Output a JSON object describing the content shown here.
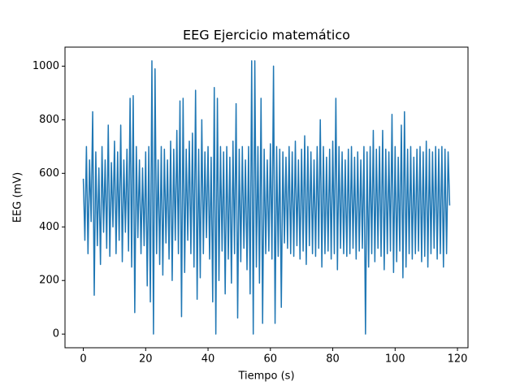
{
  "chart_data": {
    "type": "line",
    "title": "EEG Ejercicio matemático",
    "x_label": "Tiempo (s)",
    "y_label": "EEG (mV)",
    "xlim": [
      -5.875,
      123.375
    ],
    "ylim": [
      -51,
      1071
    ],
    "xticks": [
      0,
      20,
      40,
      60,
      80,
      100,
      120
    ],
    "yticks": [
      0,
      200,
      400,
      600,
      800,
      1000
    ],
    "series": [
      {
        "color": "#1f77b4",
        "x": [
          0,
          0.5,
          1,
          1.5,
          2,
          2.5,
          3,
          3.5,
          4,
          4.5,
          5,
          5.5,
          6,
          6.5,
          7,
          7.5,
          8,
          8.5,
          9,
          9.5,
          10,
          10.5,
          11,
          11.5,
          12,
          12.5,
          13,
          13.5,
          14,
          14.5,
          15,
          15.5,
          16,
          16.5,
          17,
          17.5,
          18,
          18.5,
          19,
          19.5,
          20,
          20.5,
          21,
          21.5,
          22,
          22.5,
          23,
          23.5,
          24,
          24.5,
          25,
          25.5,
          26,
          26.5,
          27,
          27.5,
          28,
          28.5,
          29,
          29.5,
          30,
          30.5,
          31,
          31.5,
          32,
          32.5,
          33,
          33.5,
          34,
          34.5,
          35,
          35.5,
          36,
          36.5,
          37,
          37.5,
          38,
          38.5,
          39,
          39.5,
          40,
          40.5,
          41,
          41.5,
          42,
          42.5,
          43,
          43.5,
          44,
          44.5,
          45,
          45.5,
          46,
          46.5,
          47,
          47.5,
          48,
          48.5,
          49,
          49.5,
          50,
          50.5,
          51,
          51.5,
          52,
          52.5,
          53,
          53.5,
          54,
          54.5,
          55,
          55.5,
          56,
          56.5,
          57,
          57.5,
          58,
          58.5,
          59,
          59.5,
          60,
          60.5,
          61,
          61.5,
          62,
          62.5,
          63,
          63.5,
          64,
          64.5,
          65,
          65.5,
          66,
          66.5,
          67,
          67.5,
          68,
          68.5,
          69,
          69.5,
          70,
          70.5,
          71,
          71.5,
          72,
          72.5,
          73,
          73.5,
          74,
          74.5,
          75,
          75.5,
          76,
          76.5,
          77,
          77.5,
          78,
          78.5,
          79,
          79.5,
          80,
          80.5,
          81,
          81.5,
          82,
          82.5,
          83,
          83.5,
          84,
          84.5,
          85,
          85.5,
          86,
          86.5,
          87,
          87.5,
          88,
          88.5,
          89,
          89.5,
          90,
          90.5,
          91,
          91.5,
          92,
          92.5,
          93,
          93.5,
          94,
          94.5,
          95,
          95.5,
          96,
          96.5,
          97,
          97.5,
          98,
          98.5,
          99,
          99.5,
          100,
          100.5,
          101,
          101.5,
          102,
          102.5,
          103,
          103.5,
          104,
          104.5,
          105,
          105.5,
          106,
          106.5,
          107,
          107.5,
          108,
          108.5,
          109,
          109.5,
          110,
          110.5,
          111,
          111.5,
          112,
          112.5,
          113,
          113.5,
          114,
          114.5,
          115,
          115.5,
          116,
          116.5,
          117,
          117.5
        ],
        "values": [
          580,
          350,
          700,
          300,
          650,
          420,
          830,
          145,
          680,
          330,
          620,
          260,
          700,
          380,
          650,
          320,
          780,
          290,
          640,
          400,
          720,
          300,
          680,
          350,
          780,
          270,
          650,
          380,
          690,
          310,
          880,
          250,
          890,
          80,
          700,
          360,
          650,
          300,
          620,
          330,
          680,
          180,
          700,
          120,
          1020,
          0,
          990,
          300,
          650,
          260,
          700,
          220,
          690,
          340,
          650,
          280,
          720,
          200,
          690,
          350,
          760,
          300,
          870,
          65,
          880,
          230,
          690,
          350,
          720,
          300,
          750,
          250,
          910,
          130,
          690,
          210,
          800,
          300,
          680,
          360,
          700,
          280,
          660,
          120,
          920,
          0,
          880,
          200,
          700,
          310,
          680,
          150,
          700,
          280,
          660,
          190,
          720,
          300,
          860,
          60,
          690,
          270,
          700,
          320,
          650,
          240,
          700,
          150,
          1020,
          0,
          1020,
          250,
          700,
          190,
          880,
          40,
          690,
          300,
          650,
          310,
          710,
          280,
          1000,
          40,
          700,
          290,
          690,
          100,
          680,
          340,
          660,
          320,
          700,
          300,
          680,
          290,
          720,
          330,
          650,
          280,
          690,
          310,
          740,
          260,
          700,
          330,
          680,
          300,
          650,
          290,
          700,
          320,
          800,
          250,
          700,
          300,
          660,
          310,
          690,
          280,
          720,
          300,
          880,
          240,
          700,
          320,
          680,
          300,
          650,
          290,
          690,
          300,
          700,
          320,
          660,
          280,
          680,
          310,
          650,
          320,
          700,
          0,
          680,
          250,
          700,
          300,
          760,
          270,
          690,
          320,
          700,
          290,
          760,
          240,
          690,
          300,
          680,
          310,
          820,
          230,
          700,
          270,
          660,
          310,
          780,
          210,
          830,
          250,
          690,
          300,
          700,
          280,
          660,
          300,
          690,
          310,
          700,
          270,
          680,
          290,
          720,
          250,
          690,
          300,
          680,
          320,
          700,
          280,
          690,
          300,
          700,
          250,
          690,
          300,
          680,
          480
        ]
      }
    ]
  }
}
